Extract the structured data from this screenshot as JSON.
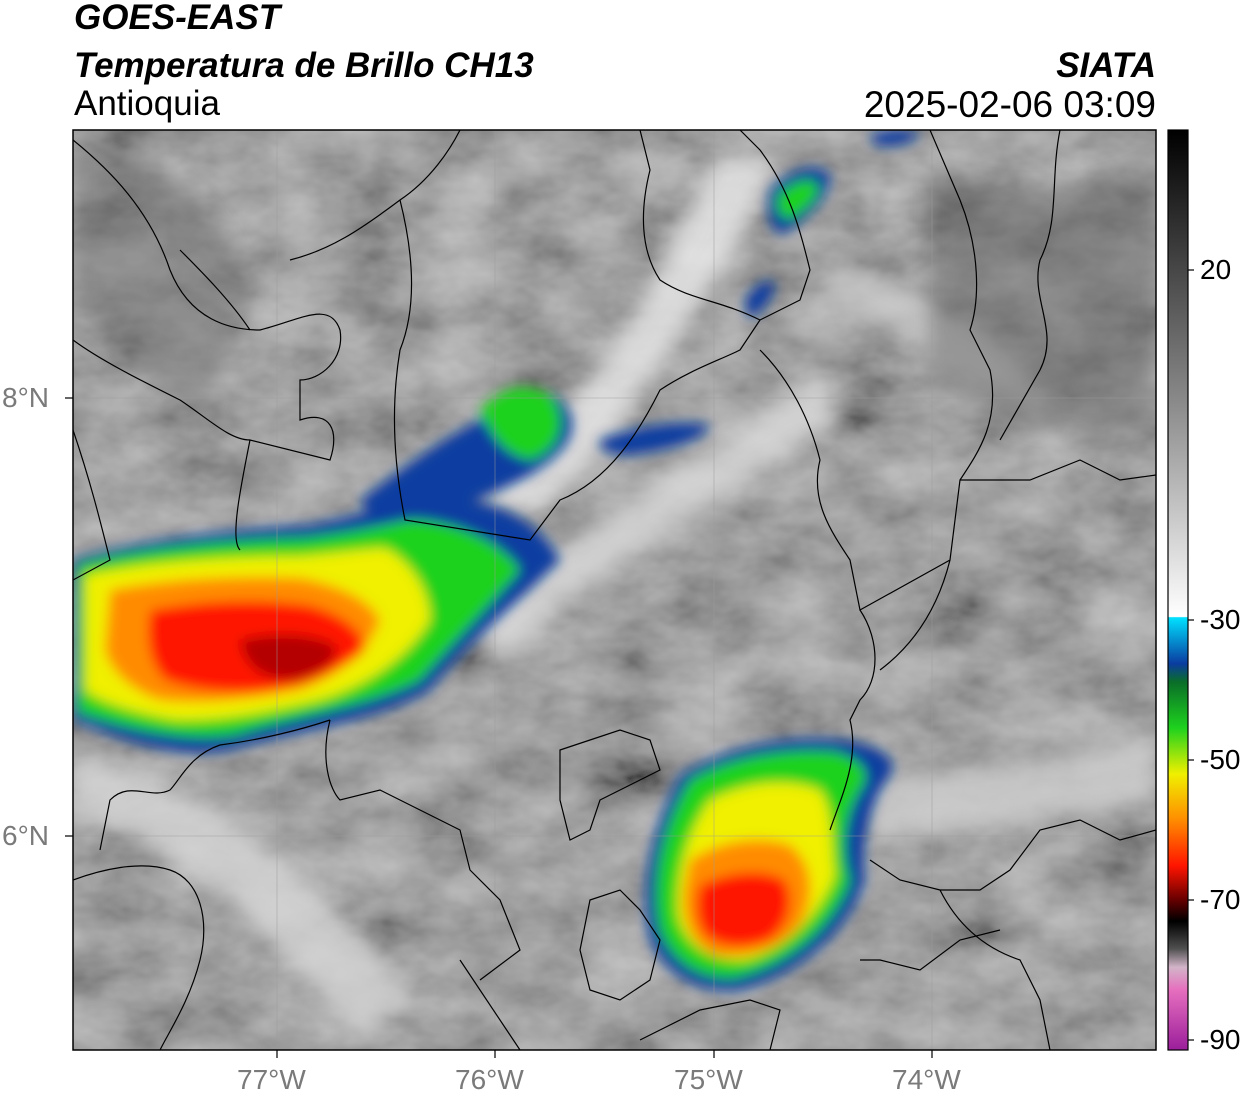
{
  "header": {
    "title_line_1": "GOES-EAST",
    "title_line_2": "Temperatura de Brillo CH13",
    "region": "Antioquia",
    "organization": "SIATA",
    "timestamp": "2025-02-06 03:09"
  },
  "map": {
    "lon_range": [
      -77.95,
      -72.98
    ],
    "lat_range": [
      4.95,
      9.17
    ],
    "lon_ticks": [
      {
        "value": -77,
        "label": "77°W"
      },
      {
        "value": -76,
        "label": "76°W"
      },
      {
        "value": -75,
        "label": "75°W"
      },
      {
        "value": -74,
        "label": "74°W"
      }
    ],
    "lat_ticks": [
      {
        "value": 8,
        "label": "8°N"
      },
      {
        "value": 6,
        "label": "6°N"
      }
    ],
    "gridlines": true
  },
  "colorbar": {
    "range": [
      -90,
      40
    ],
    "ticks": [
      {
        "value": 20,
        "label": "20"
      },
      {
        "value": -30,
        "label": "-30"
      },
      {
        "value": -50,
        "label": "-50"
      },
      {
        "value": -70,
        "label": "-70"
      },
      {
        "value": -90,
        "label": "-90"
      }
    ],
    "colors": {
      "warm_black": "#000000",
      "gray_mid": "#8c8c8c",
      "white": "#ffffff",
      "cyan": "#00e1ff",
      "blue": "#0a3ca0",
      "green": "#1ed21e",
      "yellow": "#f0f000",
      "orange": "#ff8c00",
      "red": "#ff1400",
      "dark_red": "#6e0000",
      "pink": "#e66ebe",
      "purple": "#9b1e9b"
    }
  }
}
